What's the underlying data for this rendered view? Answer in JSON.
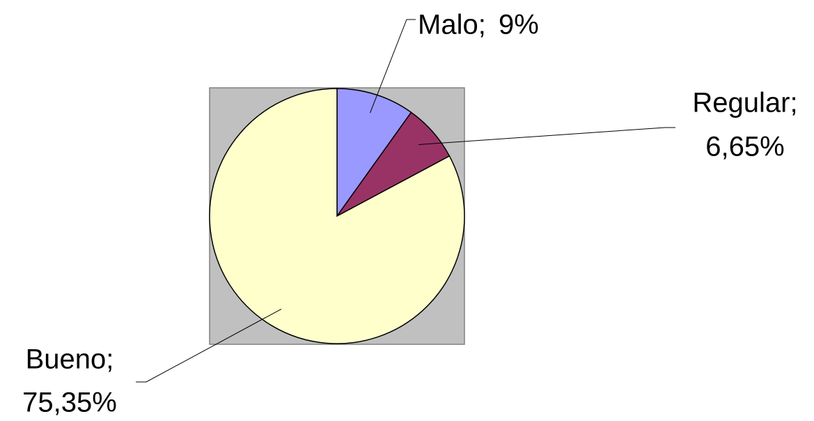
{
  "chart_data": {
    "type": "pie",
    "categories": [
      "Malo;",
      "Regular;",
      "Bueno;"
    ],
    "values": [
      9,
      6.65,
      75.35
    ],
    "value_labels": [
      "9%",
      "6,65%",
      "75,35%"
    ],
    "colors": [
      "#9999ff",
      "#993366",
      "#ffffcc"
    ]
  }
}
